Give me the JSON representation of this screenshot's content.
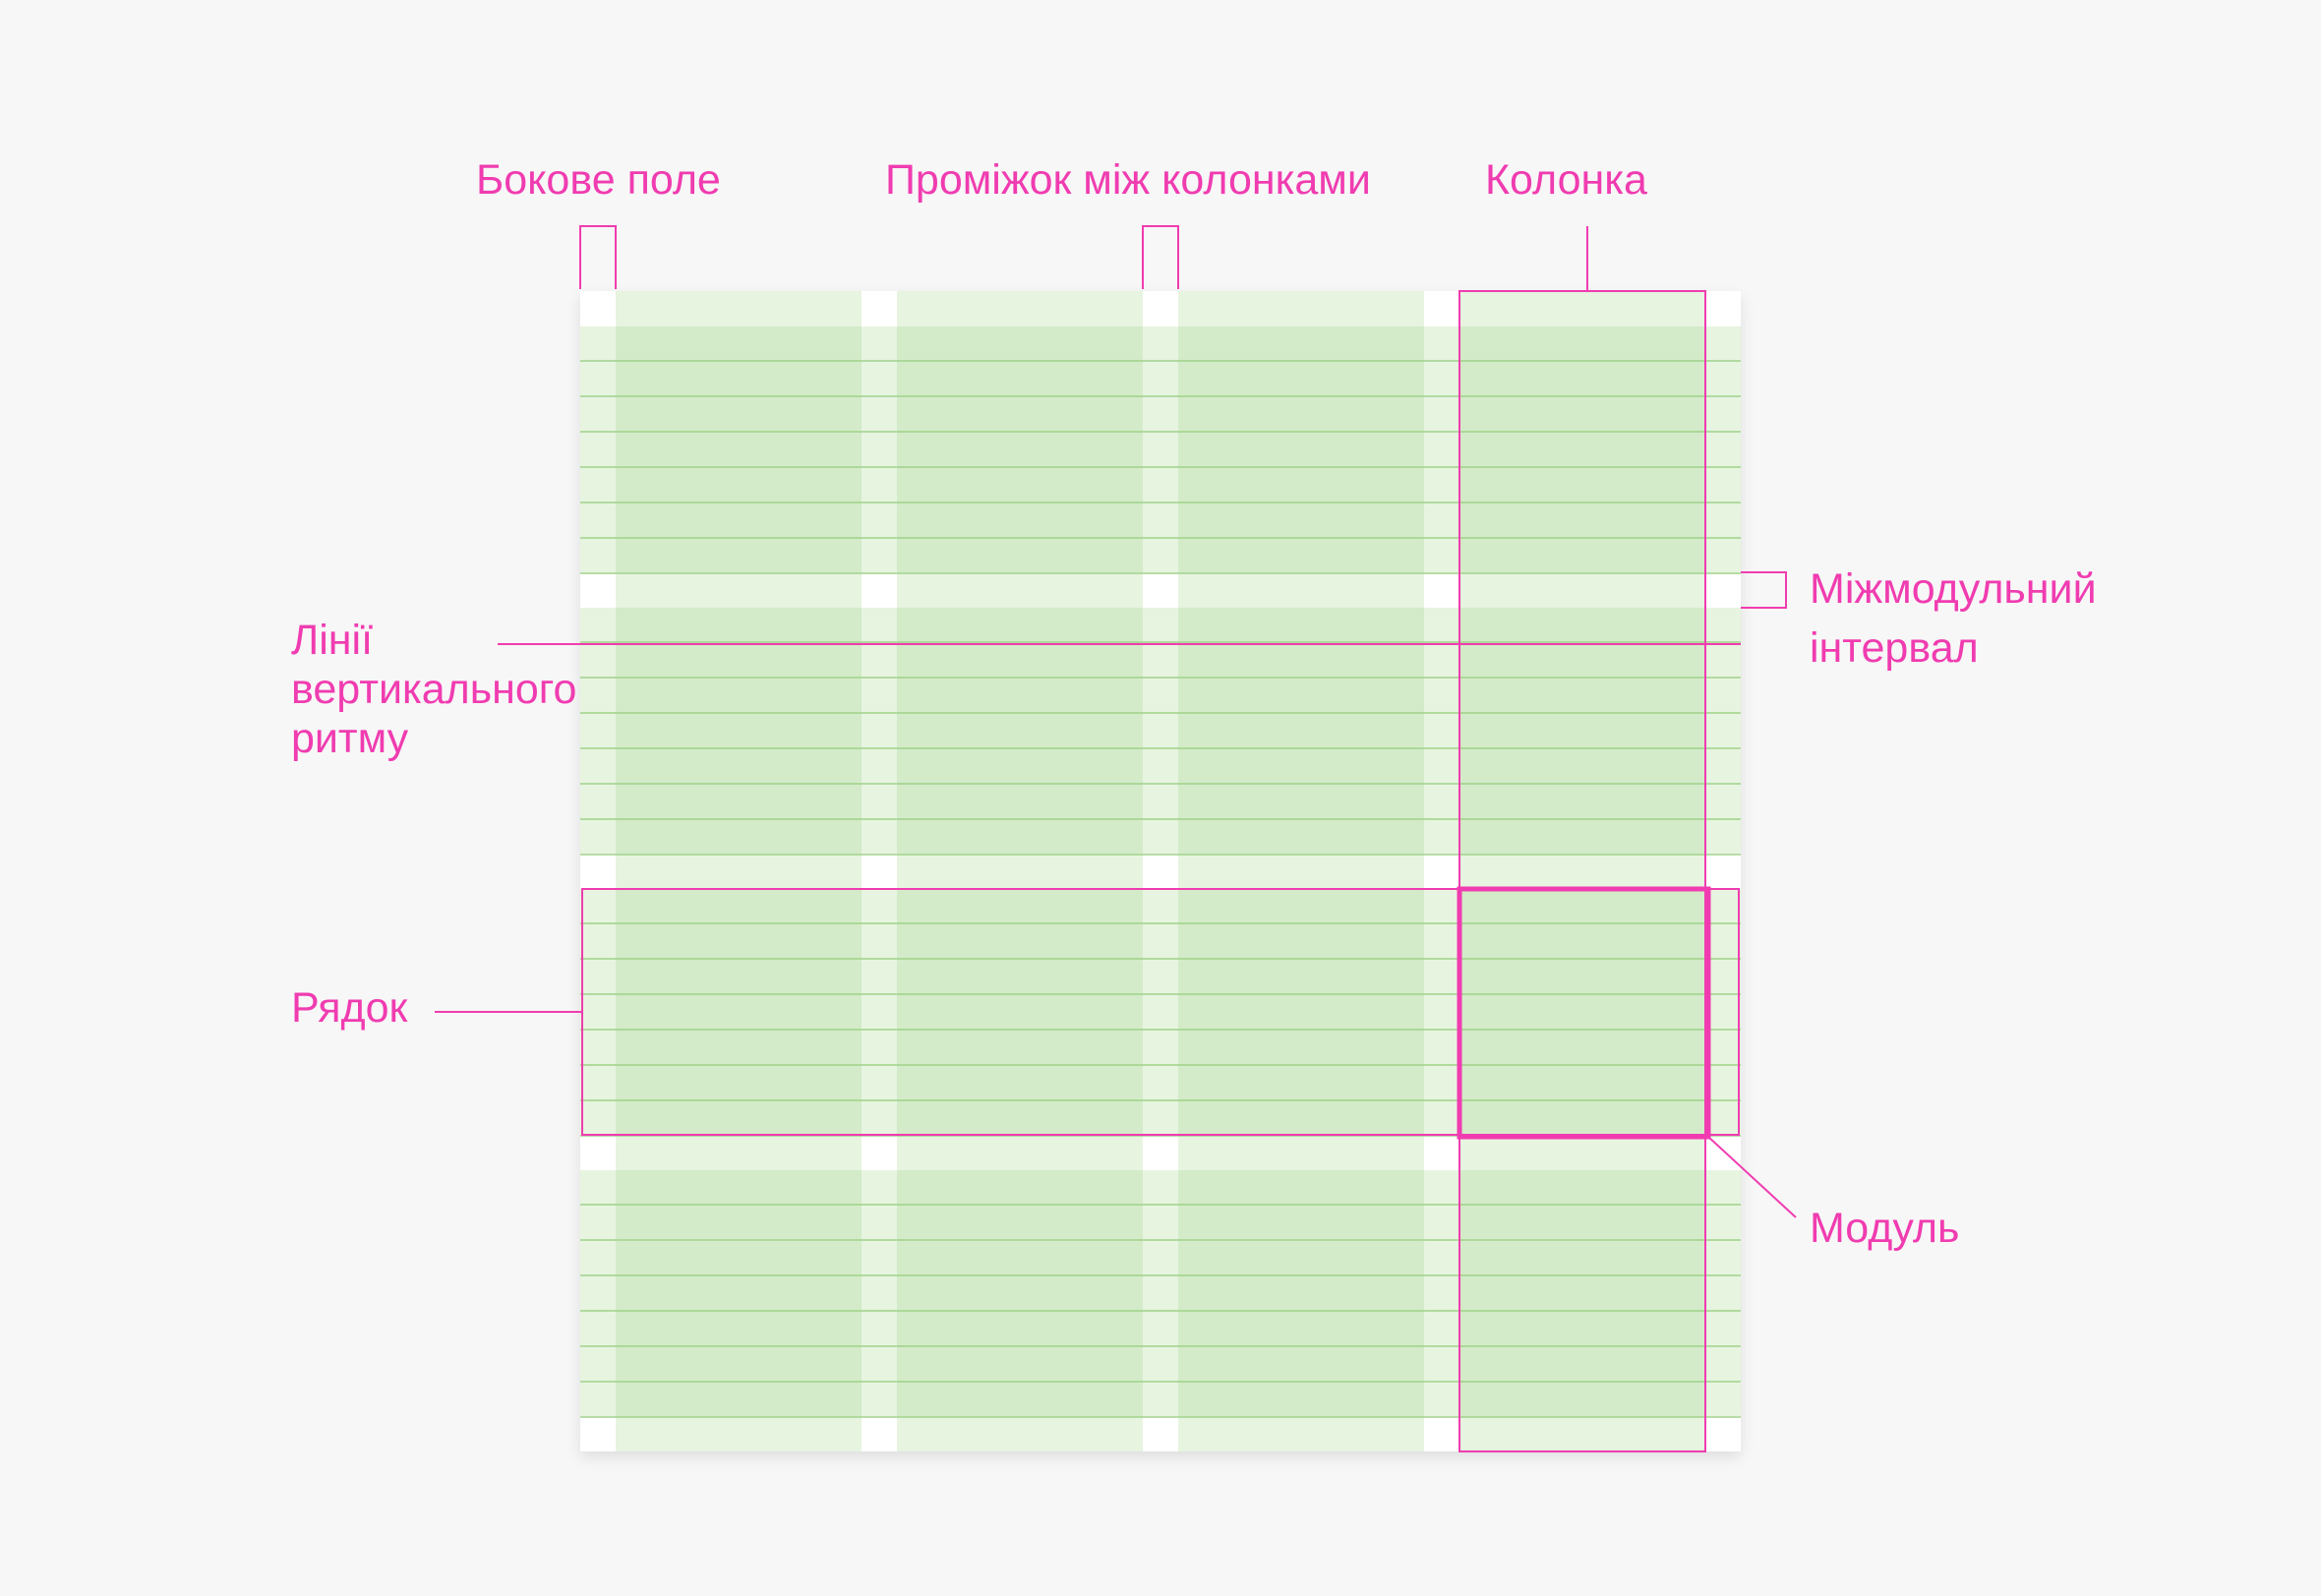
{
  "colors": {
    "background": "#f7f7f7",
    "accent": "#f03cb0",
    "sheet": "#ffffff",
    "column_fill": "#d3ebc8",
    "gutter_fill": "#e7f4e0",
    "baseline": "#9fd189"
  },
  "grid": {
    "columns": 4,
    "rows": 4,
    "baselines_per_row": 7
  },
  "labels": {
    "side_margin": "Бокове поле",
    "gutter": "Проміжок між колонками",
    "column": "Колонка",
    "intermodule_line1": "Міжмодульний",
    "intermodule_line2": "інтервал",
    "baseline_line1": "Лінії",
    "baseline_line2": "вертикального",
    "baseline_line3": "ритму",
    "row": "Рядок",
    "module": "Модуль"
  }
}
